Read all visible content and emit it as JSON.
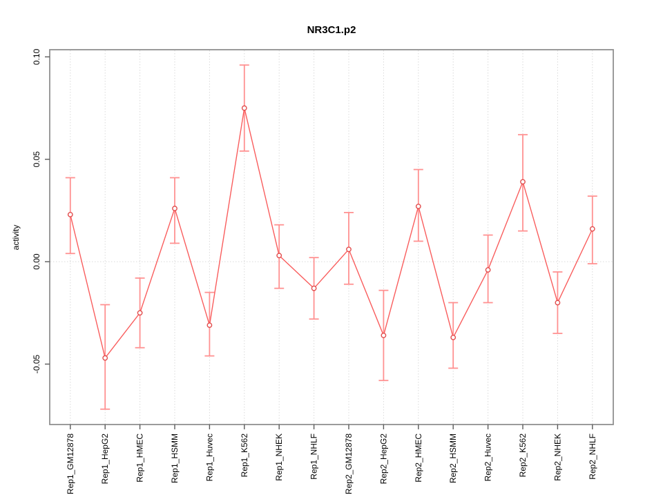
{
  "title": "NR3C1.p2",
  "chart_data": {
    "type": "line",
    "title": "NR3C1.p2",
    "xlabel": "",
    "ylabel": "activity",
    "legend": "none",
    "grid": "dotted vertical gridline at each category; dotted horizontal line at y=0",
    "ylim": [
      -0.0795,
      0.1035
    ],
    "yticks": [
      {
        "value": -0.05,
        "label": "-0.05"
      },
      {
        "value": 0.0,
        "label": "0.00"
      },
      {
        "value": 0.05,
        "label": "0.05"
      },
      {
        "value": 0.1,
        "label": "0.10"
      }
    ],
    "zero_line": 0,
    "categories": [
      "Rep1_GM12878",
      "Rep1_HepG2",
      "Rep1_HMEC",
      "Rep1_HSMM",
      "Rep1_Huvec",
      "Rep1_K562",
      "Rep1_NHEK",
      "Rep1_NHLF",
      "Rep2_GM12878",
      "Rep2_HepG2",
      "Rep2_HMEC",
      "Rep2_HSMM",
      "Rep2_Huvec",
      "Rep2_K562",
      "Rep2_NHEK",
      "Rep2_NHLF"
    ],
    "series": [
      {
        "name": "activity",
        "values": [
          0.023,
          -0.047,
          -0.025,
          0.026,
          -0.031,
          0.075,
          0.003,
          -0.013,
          0.006,
          -0.036,
          0.027,
          -0.037,
          -0.004,
          0.039,
          -0.02,
          0.016
        ],
        "ci_lower": [
          0.004,
          -0.072,
          -0.042,
          0.009,
          -0.046,
          0.054,
          -0.013,
          -0.028,
          -0.011,
          -0.058,
          0.01,
          -0.052,
          -0.02,
          0.015,
          -0.035,
          -0.001
        ],
        "ci_upper": [
          0.041,
          -0.021,
          -0.008,
          0.041,
          -0.015,
          0.096,
          0.018,
          0.002,
          0.024,
          -0.014,
          0.045,
          -0.02,
          0.013,
          0.062,
          -0.005,
          0.032
        ]
      }
    ],
    "colors": {
      "line": "#f95d5d",
      "marker": "#e24c4c",
      "error_bar": "#ff9191",
      "grid": "#d9d9d9",
      "box": "#909090",
      "text": "#000000",
      "background": "#ffffff"
    }
  }
}
